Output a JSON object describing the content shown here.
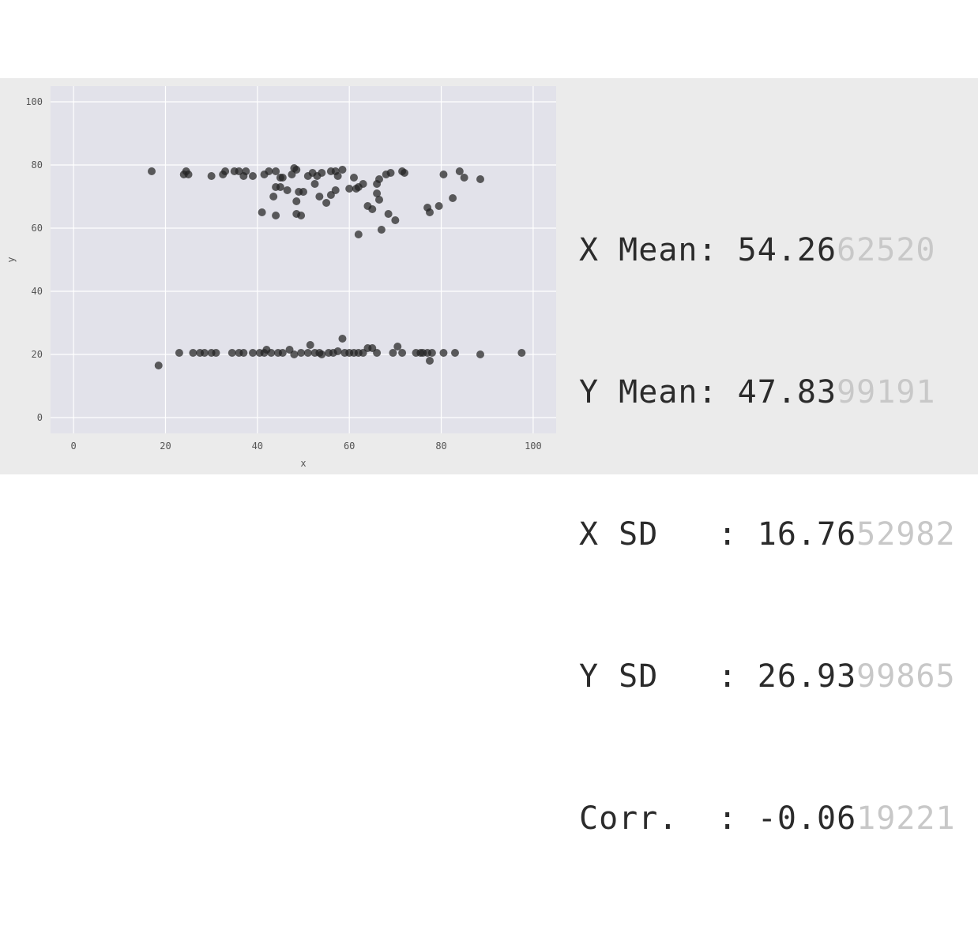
{
  "chart_data": {
    "type": "scatter",
    "xlabel": "x",
    "ylabel": "y",
    "xlim": [
      -5,
      105
    ],
    "ylim": [
      -5,
      105
    ],
    "x_ticks": [
      0,
      20,
      40,
      60,
      80,
      100
    ],
    "y_ticks": [
      0,
      20,
      40,
      60,
      80,
      100
    ],
    "grid": true,
    "point_color": "#222222",
    "plot_background": "#e2e2ea",
    "points": [
      [
        17,
        78
      ],
      [
        24,
        77
      ],
      [
        24.5,
        78
      ],
      [
        25,
        77
      ],
      [
        30,
        76.5
      ],
      [
        32.5,
        77
      ],
      [
        33,
        78
      ],
      [
        35,
        78
      ],
      [
        36,
        78
      ],
      [
        37,
        76.5
      ],
      [
        37.5,
        78
      ],
      [
        39,
        76.5
      ],
      [
        41.5,
        77
      ],
      [
        42.5,
        78
      ],
      [
        44,
        78
      ],
      [
        45,
        76
      ],
      [
        45.5,
        76
      ],
      [
        47.5,
        77
      ],
      [
        48,
        79
      ],
      [
        48.5,
        78.5
      ],
      [
        51,
        76.5
      ],
      [
        52,
        77.5
      ],
      [
        53,
        76.5
      ],
      [
        54,
        77.5
      ],
      [
        56,
        78
      ],
      [
        57,
        78
      ],
      [
        57.5,
        76.5
      ],
      [
        58.5,
        78.5
      ],
      [
        61,
        76
      ],
      [
        62,
        73
      ],
      [
        63,
        74
      ],
      [
        66,
        74
      ],
      [
        66.5,
        75.5
      ],
      [
        68,
        77
      ],
      [
        69,
        77.5
      ],
      [
        71.5,
        78
      ],
      [
        72,
        77.5
      ],
      [
        80.5,
        77
      ],
      [
        84,
        78
      ],
      [
        85,
        76
      ],
      [
        88.5,
        75.5
      ],
      [
        43.5,
        70
      ],
      [
        44,
        73
      ],
      [
        45,
        73
      ],
      [
        46.5,
        72
      ],
      [
        48.5,
        68.5
      ],
      [
        49,
        71.5
      ],
      [
        50,
        71.5
      ],
      [
        52.5,
        74
      ],
      [
        53.5,
        70
      ],
      [
        55,
        68
      ],
      [
        56,
        70.5
      ],
      [
        57,
        72
      ],
      [
        60,
        72.5
      ],
      [
        61.5,
        72.5
      ],
      [
        64,
        67
      ],
      [
        65,
        66
      ],
      [
        66,
        71
      ],
      [
        66.5,
        69
      ],
      [
        68.5,
        64.5
      ],
      [
        70,
        62.5
      ],
      [
        77,
        66.5
      ],
      [
        77.5,
        65
      ],
      [
        79.5,
        67
      ],
      [
        82.5,
        69.5
      ],
      [
        41,
        65
      ],
      [
        44,
        64
      ],
      [
        48.5,
        64.5
      ],
      [
        49.5,
        64
      ],
      [
        62,
        58
      ],
      [
        67,
        59.5
      ],
      [
        18.5,
        16.5
      ],
      [
        23,
        20.5
      ],
      [
        26,
        20.5
      ],
      [
        27.5,
        20.5
      ],
      [
        28.5,
        20.5
      ],
      [
        30,
        20.5
      ],
      [
        31,
        20.5
      ],
      [
        34.5,
        20.5
      ],
      [
        36,
        20.5
      ],
      [
        37,
        20.5
      ],
      [
        39,
        20.5
      ],
      [
        40.5,
        20.5
      ],
      [
        41.5,
        20.5
      ],
      [
        42,
        21.5
      ],
      [
        43,
        20.5
      ],
      [
        44.5,
        20.5
      ],
      [
        45.5,
        20.5
      ],
      [
        47,
        21.5
      ],
      [
        48,
        20
      ],
      [
        49.5,
        20.5
      ],
      [
        51,
        20.5
      ],
      [
        51.5,
        23
      ],
      [
        52.5,
        20.5
      ],
      [
        53.5,
        20.5
      ],
      [
        54,
        20
      ],
      [
        55.5,
        20.5
      ],
      [
        56.5,
        20.5
      ],
      [
        57.5,
        21
      ],
      [
        58.5,
        25
      ],
      [
        59,
        20.5
      ],
      [
        60,
        20.5
      ],
      [
        61,
        20.5
      ],
      [
        62,
        20.5
      ],
      [
        63,
        20.5
      ],
      [
        64,
        22
      ],
      [
        65,
        22
      ],
      [
        66,
        20.5
      ],
      [
        69.5,
        20.5
      ],
      [
        70.5,
        22.5
      ],
      [
        71.5,
        20.5
      ],
      [
        74.5,
        20.5
      ],
      [
        75.5,
        20.5
      ],
      [
        76,
        20.5
      ],
      [
        77,
        20.5
      ],
      [
        77.5,
        18
      ],
      [
        78,
        20.5
      ],
      [
        80.5,
        20.5
      ],
      [
        83,
        20.5
      ],
      [
        88.5,
        20
      ],
      [
        97.5,
        20.5
      ]
    ]
  },
  "stats": [
    {
      "label": "X Mean: ",
      "value_main": "54.26",
      "value_faded": "62520"
    },
    {
      "label": "Y Mean: ",
      "value_main": "47.83",
      "value_faded": "99191"
    },
    {
      "label": "X SD   : ",
      "value_main": "16.76",
      "value_faded": "52982"
    },
    {
      "label": "Y SD   : ",
      "value_main": "26.93",
      "value_faded": "99865"
    },
    {
      "label": "Corr.  : ",
      "value_main": "-0.06",
      "value_faded": "19221"
    }
  ]
}
